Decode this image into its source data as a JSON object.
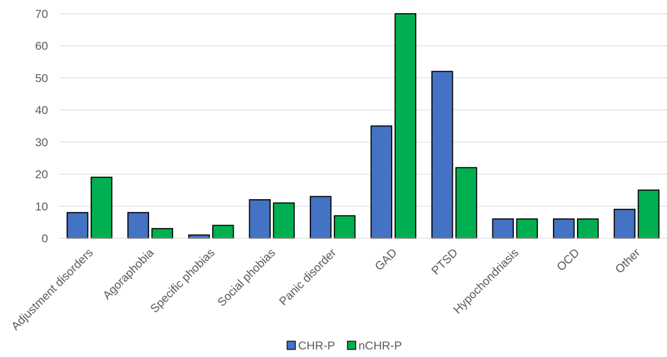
{
  "chart_data": {
    "type": "bar",
    "categories": [
      "Adjustment disorders",
      "Agoraphobia",
      "Specific phobias",
      "Social phobias",
      "Panic disorder",
      "GAD",
      "PTSD",
      "Hypochondriasis",
      "OCD",
      "Other"
    ],
    "series": [
      {
        "name": "CHR-P",
        "color": "#4472C4",
        "values": [
          8,
          8,
          1,
          12,
          13,
          35,
          52,
          6,
          6,
          9
        ]
      },
      {
        "name": "nCHR-P",
        "color": "#00B050",
        "values": [
          19,
          3,
          4,
          11,
          7,
          70,
          22,
          6,
          6,
          15
        ]
      }
    ],
    "yticks": [
      "0",
      "10",
      "20",
      "30",
      "40",
      "50",
      "60",
      "70"
    ],
    "ylim": [
      0,
      70
    ],
    "grid": true,
    "legend": "bottom"
  }
}
